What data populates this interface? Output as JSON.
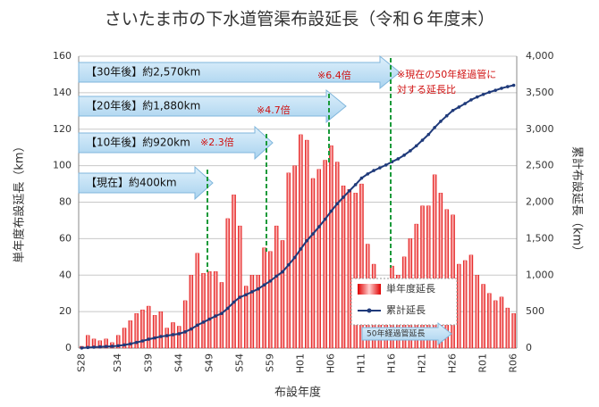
{
  "chart_data": {
    "type": "bar",
    "title": "さいたま市の下水道管渠布設延長（令和６年度末）",
    "xlabel": "布設年度",
    "ylabel": "単年度布設延長（km）",
    "y2label": "累計布設延長（km）",
    "categories": [
      "S28",
      null,
      null,
      null,
      null,
      null,
      "S34",
      null,
      null,
      null,
      null,
      "S39",
      null,
      null,
      null,
      null,
      "S44",
      null,
      null,
      null,
      null,
      "S49",
      null,
      null,
      null,
      null,
      "S54",
      null,
      null,
      null,
      null,
      "S59",
      null,
      null,
      null,
      null,
      "H01",
      null,
      null,
      null,
      null,
      "H06",
      null,
      null,
      null,
      null,
      "H11",
      null,
      null,
      null,
      null,
      "H16",
      null,
      null,
      null,
      null,
      "H21",
      null,
      null,
      null,
      null,
      "H26",
      null,
      null,
      null,
      null,
      "R01",
      null,
      null,
      null,
      null,
      "R06"
    ],
    "series": [
      {
        "name": "単年度延長",
        "type": "bar",
        "color": "#e00000",
        "values": [
          1,
          7,
          5,
          4,
          5,
          3,
          7,
          11,
          15,
          19,
          21,
          23,
          18,
          20,
          11,
          14,
          12,
          26,
          40,
          52,
          41,
          42,
          42,
          36,
          71,
          84,
          67,
          34,
          40,
          40,
          55,
          53,
          67,
          59,
          96,
          100,
          117,
          114,
          93,
          98,
          103,
          111,
          102,
          89,
          87,
          85,
          90,
          57,
          46,
          38,
          38,
          45,
          40,
          50,
          60,
          68,
          78,
          78,
          95,
          85,
          76,
          73,
          46,
          48,
          51,
          40,
          35,
          30,
          26,
          28,
          22,
          19
        ]
      },
      {
        "name": "累計延長",
        "type": "line",
        "color": "#1f3a7a",
        "axis": "y2",
        "values": [
          1,
          8,
          13,
          17,
          22,
          25,
          32,
          43,
          58,
          77,
          98,
          121,
          139,
          159,
          170,
          184,
          196,
          222,
          262,
          314,
          355,
          397,
          439,
          475,
          546,
          630,
          697,
          731,
          771,
          811,
          866,
          919,
          986,
          1045,
          1141,
          1241,
          1358,
          1472,
          1565,
          1663,
          1766,
          1877,
          1979,
          2068,
          2155,
          2240,
          2330,
          2387,
          2433,
          2471,
          2509,
          2554,
          2594,
          2644,
          2704,
          2772,
          2850,
          2928,
          3023,
          3108,
          3184,
          3257,
          3303,
          3351,
          3402,
          3442,
          3477,
          3507,
          3533,
          3561,
          3583,
          3602
        ]
      }
    ],
    "ylim": [
      0,
      160
    ],
    "yticks": [
      0,
      20,
      40,
      60,
      80,
      100,
      120,
      140,
      160
    ],
    "y2lim": [
      0,
      4000
    ],
    "y2ticks": [
      0,
      500,
      {
        "value": 1000,
        "label": "1,000"
      },
      {
        "value": 1500,
        "label": "1,500"
      },
      {
        "value": 2000,
        "label": "2,000"
      },
      {
        "value": 2500,
        "label": "2,500"
      },
      {
        "value": 3000,
        "label": "3,000"
      },
      {
        "value": 3500,
        "label": "3,500"
      },
      {
        "value": 4000,
        "label": "4,000"
      }
    ],
    "grid": true,
    "annotations": [
      "【30年後】約2,570km",
      "※6.4倍",
      "【20年後】約1,880km",
      "※4.7倍",
      "【10年後】約920km",
      "※2.3倍",
      "【現在】約400km",
      "※現在の50年経過管に",
      "対する延長比",
      "50年経過管延長"
    ]
  }
}
